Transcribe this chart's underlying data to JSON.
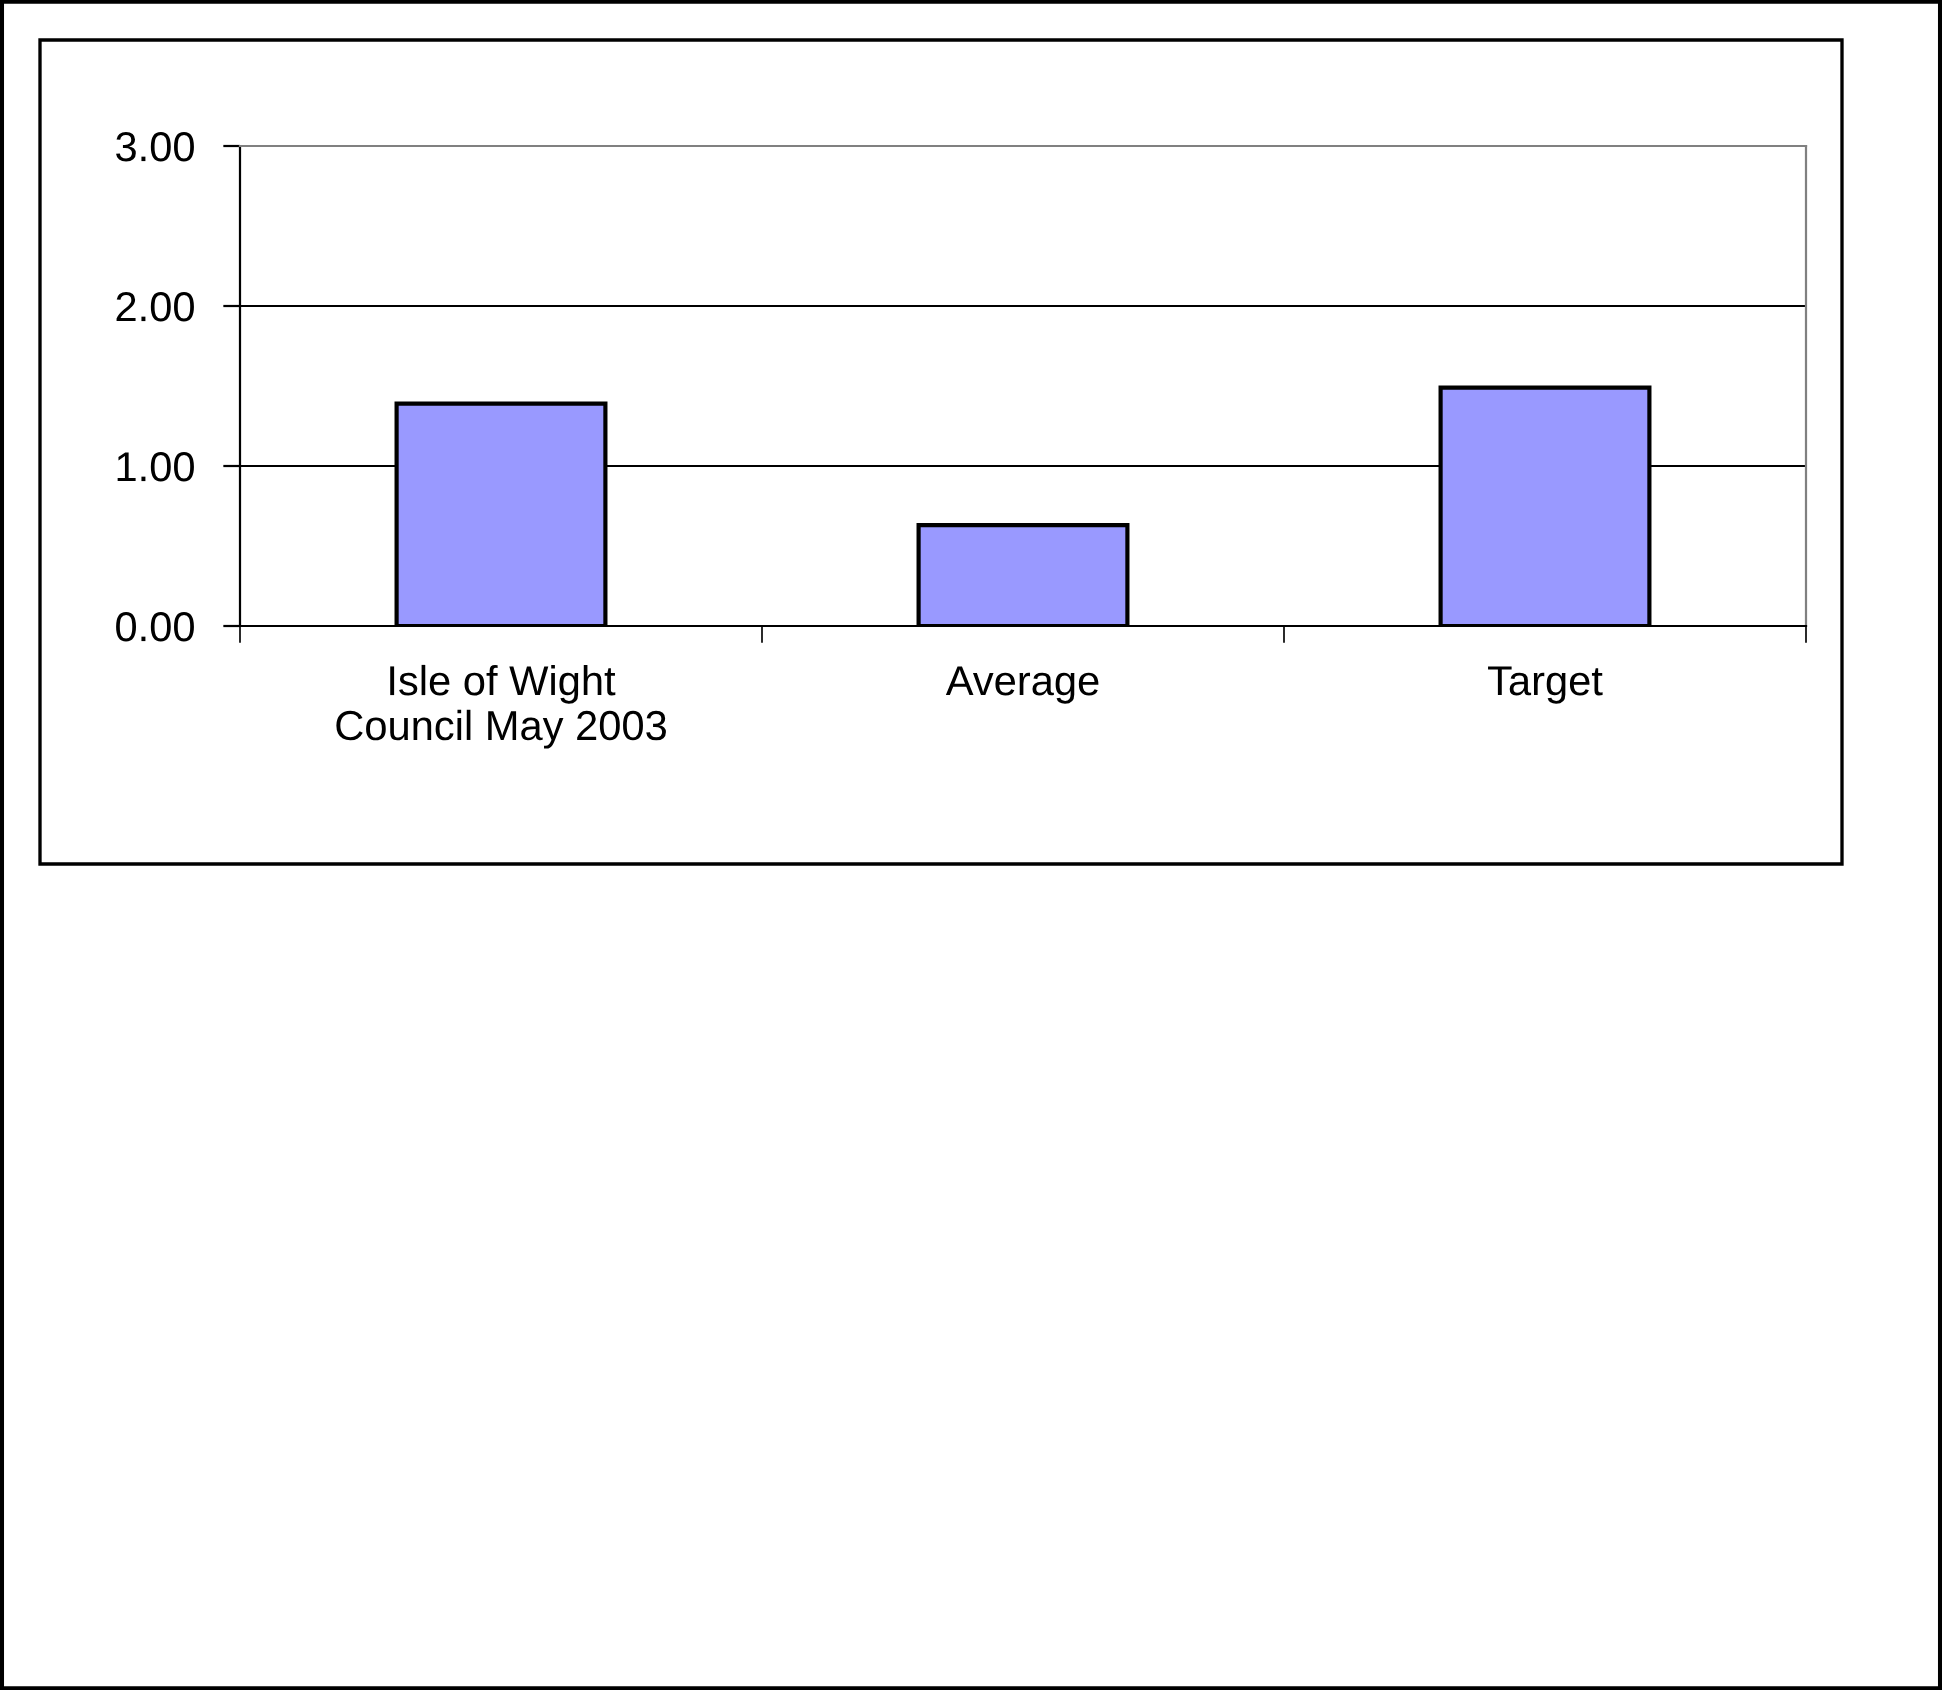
{
  "chart_data": {
    "type": "bar",
    "categories": [
      "Isle of Wight\nCouncil May 2003",
      "Average",
      "Target"
    ],
    "values": [
      1.39,
      0.63,
      1.49
    ],
    "color": "#9999ff",
    "ylim": [
      0,
      3
    ],
    "yticks": [
      {
        "value": 0,
        "label": "0.00"
      },
      {
        "value": 1,
        "label": "1.00"
      },
      {
        "value": 2,
        "label": "2.00"
      },
      {
        "value": 3,
        "label": "3.00"
      }
    ],
    "grid": "y",
    "legend": false
  }
}
